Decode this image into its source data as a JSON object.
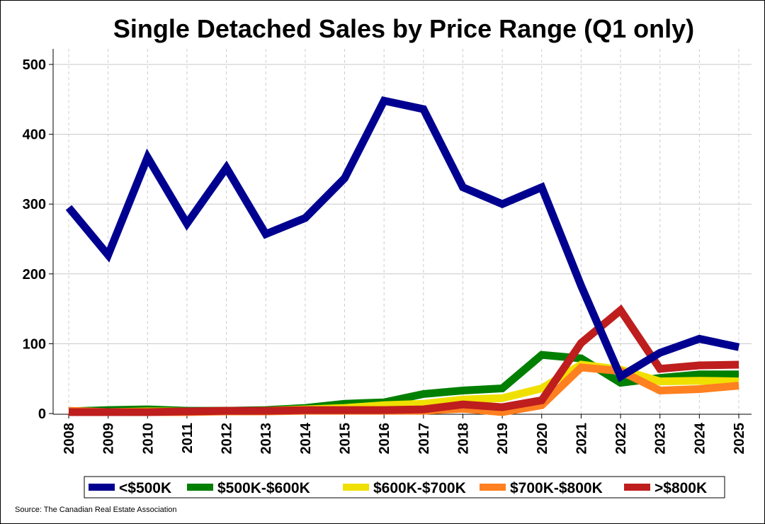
{
  "chart_data": {
    "type": "line",
    "title": "Single Detached Sales by Price Range (Q1 only)",
    "xlabel": "",
    "ylabel": "",
    "x": [
      "2008",
      "2009",
      "2010",
      "2011",
      "2012",
      "2013",
      "2014",
      "2015",
      "2016",
      "2017",
      "2018",
      "2019",
      "2020",
      "2021",
      "2022",
      "2023",
      "2024",
      "2025"
    ],
    "ylim": [
      0,
      520
    ],
    "yticks": [
      "0",
      "100",
      "200",
      "300",
      "400",
      "500"
    ],
    "grid": true,
    "legend_position": "bottom",
    "series": [
      {
        "name": "<$500K",
        "color": "#000090",
        "values": [
          295,
          227,
          367,
          272,
          352,
          257,
          280,
          337,
          448,
          436,
          324,
          300,
          324,
          183,
          53,
          87,
          107,
          95
        ]
      },
      {
        "name": "$500K-$600K",
        "color": "#007F00",
        "values": [
          3,
          5,
          6,
          4,
          4,
          5,
          8,
          14,
          16,
          28,
          33,
          36,
          84,
          79,
          44,
          51,
          56,
          56
        ]
      },
      {
        "name": "$600K-$700K",
        "color": "#F0E000",
        "values": [
          2,
          2,
          3,
          3,
          3,
          4,
          6,
          8,
          12,
          14,
          20,
          22,
          36,
          70,
          63,
          46,
          47,
          46
        ]
      },
      {
        "name": "$700K-$800K",
        "color": "#FF8020",
        "values": [
          4,
          2,
          2,
          2,
          3,
          3,
          4,
          4,
          4,
          4,
          7,
          2,
          12,
          66,
          61,
          33,
          35,
          40
        ]
      },
      {
        "name": ">$800K",
        "color": "#BE1E1E",
        "values": [
          2,
          2,
          2,
          3,
          4,
          4,
          5,
          5,
          5,
          6,
          13,
          9,
          19,
          101,
          148,
          64,
          69,
          70
        ]
      }
    ],
    "source": "Source: The Canadian Real Estate Association"
  }
}
